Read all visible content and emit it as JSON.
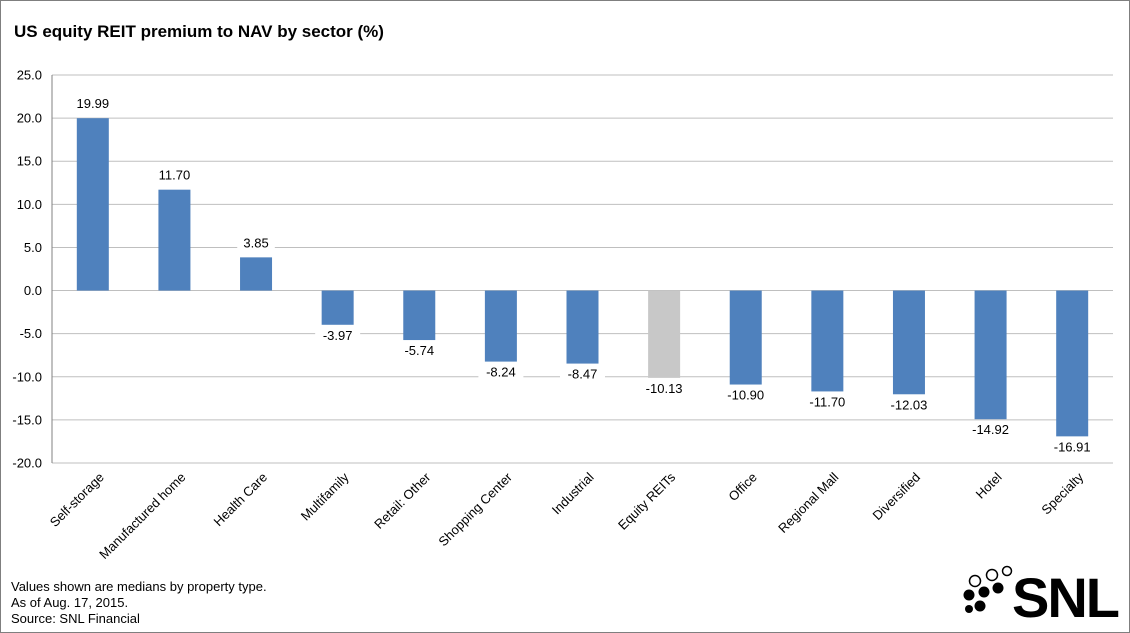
{
  "chart_data": {
    "type": "bar",
    "title": "US equity REIT premium to NAV by sector (%)",
    "xlabel": "",
    "ylabel": "",
    "ylim": [
      -20.0,
      25.0
    ],
    "yticks": [
      "25.0",
      "20.0",
      "15.0",
      "10.0",
      "5.0",
      "0.0",
      "-5.0",
      "-10.0",
      "-15.0",
      "-20.0"
    ],
    "grid": true,
    "categories": [
      "Self-storage",
      "Manufactured home",
      "Health Care",
      "Multifamily",
      "Retail: Other",
      "Shopping Center",
      "Industrial",
      "Equity REITs",
      "Office",
      "Regional Mall",
      "Diversified",
      "Hotel",
      "Specialty"
    ],
    "values": [
      19.99,
      11.7,
      3.85,
      -3.97,
      -5.74,
      -8.24,
      -8.47,
      -10.13,
      -10.9,
      -11.7,
      -12.03,
      -14.92,
      -16.91
    ],
    "data_labels": [
      "19.99",
      "11.70",
      "3.85",
      "-3.97",
      "-5.74",
      "-8.24",
      "-8.47",
      "-10.13",
      "-10.90",
      "-11.70",
      "-12.03",
      "-14.92",
      "-16.91"
    ],
    "colors": {
      "default_bar": "#4f81bd",
      "highlight_bar": "#c8c8c8",
      "gridline": "#bfbfbf",
      "axis": "#808080"
    },
    "highlight_category": "Equity REITs"
  },
  "notes": [
    "Values shown are medians by property type.",
    "As of Aug. 17, 2015.",
    "Source: SNL Financial"
  ],
  "logo": {
    "text": "SNL",
    "icon": "dots-logo-icon"
  }
}
